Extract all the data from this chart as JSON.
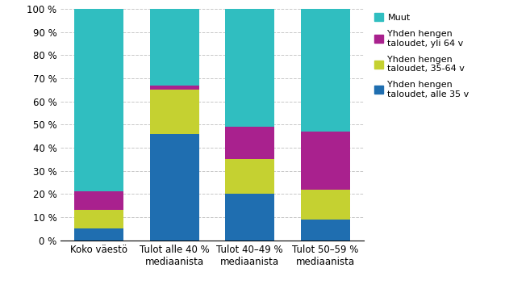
{
  "categories": [
    "Koko väestö",
    "Tulot alle 40 %\nmediaanista",
    "Tulot 40–49 %\nmediaanista",
    "Tulot 50–59 %\nmediaanista"
  ],
  "series": [
    {
      "label": "Yhden hengen\ntaloudet, alle 35 v",
      "values": [
        5,
        46,
        20,
        9
      ],
      "color": "#1F6EB0"
    },
    {
      "label": "Yhden hengen\ntaloudet, 35-64 v",
      "values": [
        8,
        19,
        15,
        13
      ],
      "color": "#C5D131"
    },
    {
      "label": "Yhden hengen\ntaloudet, yli 64 v",
      "values": [
        8,
        2,
        14,
        25
      ],
      "color": "#A9218E"
    },
    {
      "label": "Muut",
      "values": [
        79,
        33,
        51,
        53
      ],
      "color": "#30BEC0"
    }
  ],
  "ylim": [
    0,
    100
  ],
  "yticks": [
    0,
    10,
    20,
    30,
    40,
    50,
    60,
    70,
    80,
    90,
    100
  ],
  "ytick_labels": [
    "0 %",
    "10 %",
    "20 %",
    "30 %",
    "40 %",
    "50 %",
    "60 %",
    "70 %",
    "80 %",
    "90 %",
    "100 %"
  ],
  "background_color": "#ffffff",
  "grid_color": "#c8c8c8",
  "bar_width": 0.65,
  "figsize": [
    6.26,
    3.63
  ],
  "dpi": 100
}
